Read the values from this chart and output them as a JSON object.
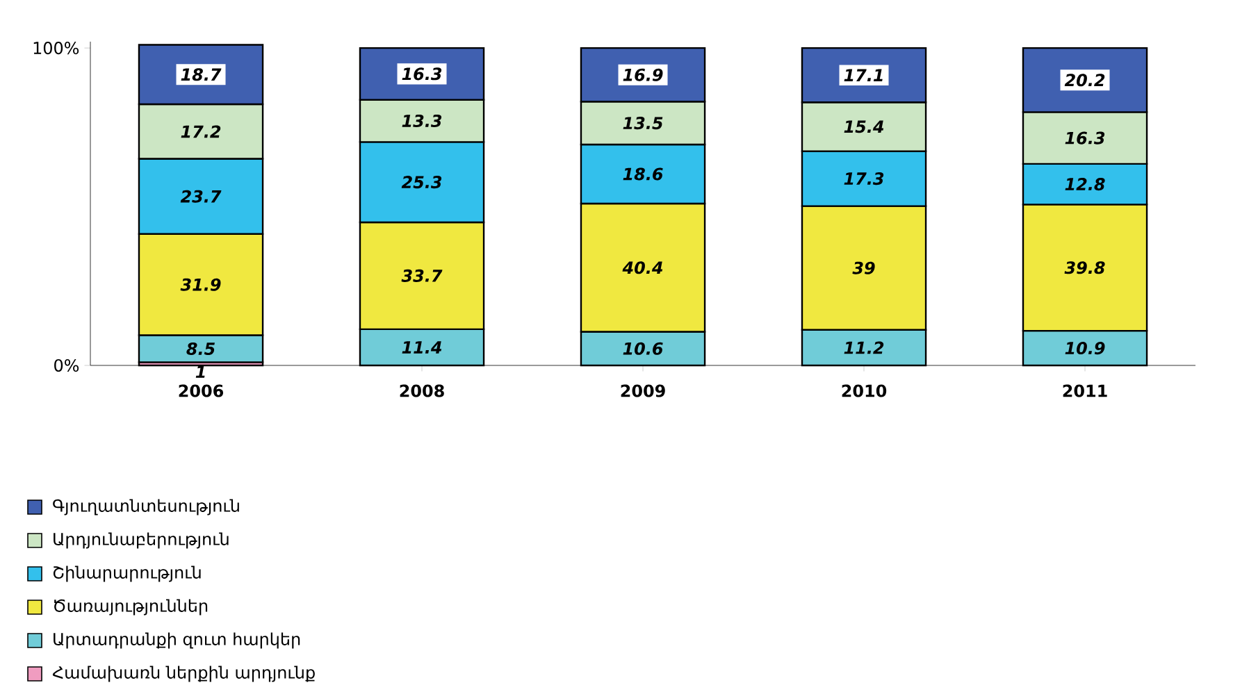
{
  "chart_data": {
    "type": "bar",
    "stacked": true,
    "categories": [
      "2006",
      "2008",
      "2009",
      "2010",
      "2011"
    ],
    "series": [
      {
        "name": "Համախառն ներքին արդյունք",
        "color": "#f09cc0",
        "values": [
          1,
          null,
          null,
          null,
          null
        ]
      },
      {
        "name": "Արտադրանքի զուտ հարկեր",
        "color": "#70ccd8",
        "values": [
          8.5,
          11.4,
          10.6,
          11.2,
          10.9
        ]
      },
      {
        "name": "Ծառայություններ",
        "color": "#f0e840",
        "values": [
          31.9,
          33.7,
          40.4,
          39,
          39.8
        ]
      },
      {
        "name": "Շինարարություն",
        "color": "#33c0ec",
        "values": [
          23.7,
          25.3,
          18.6,
          17.3,
          12.8
        ]
      },
      {
        "name": "Արդյունաբերություն",
        "color": "#cce6c4",
        "values": [
          17.2,
          13.3,
          13.5,
          15.4,
          16.3
        ]
      },
      {
        "name": "Գյուղատնտեսություն",
        "color": "#4060b0",
        "values": [
          18.7,
          16.3,
          16.9,
          17.1,
          20.2
        ]
      }
    ],
    "ylim": [
      0,
      102
    ],
    "yticks": [
      {
        "value": 0,
        "label": "0%"
      },
      {
        "value": 100,
        "label": "100%"
      }
    ],
    "data_labels": true,
    "legend": "bottom left",
    "grid": false
  }
}
